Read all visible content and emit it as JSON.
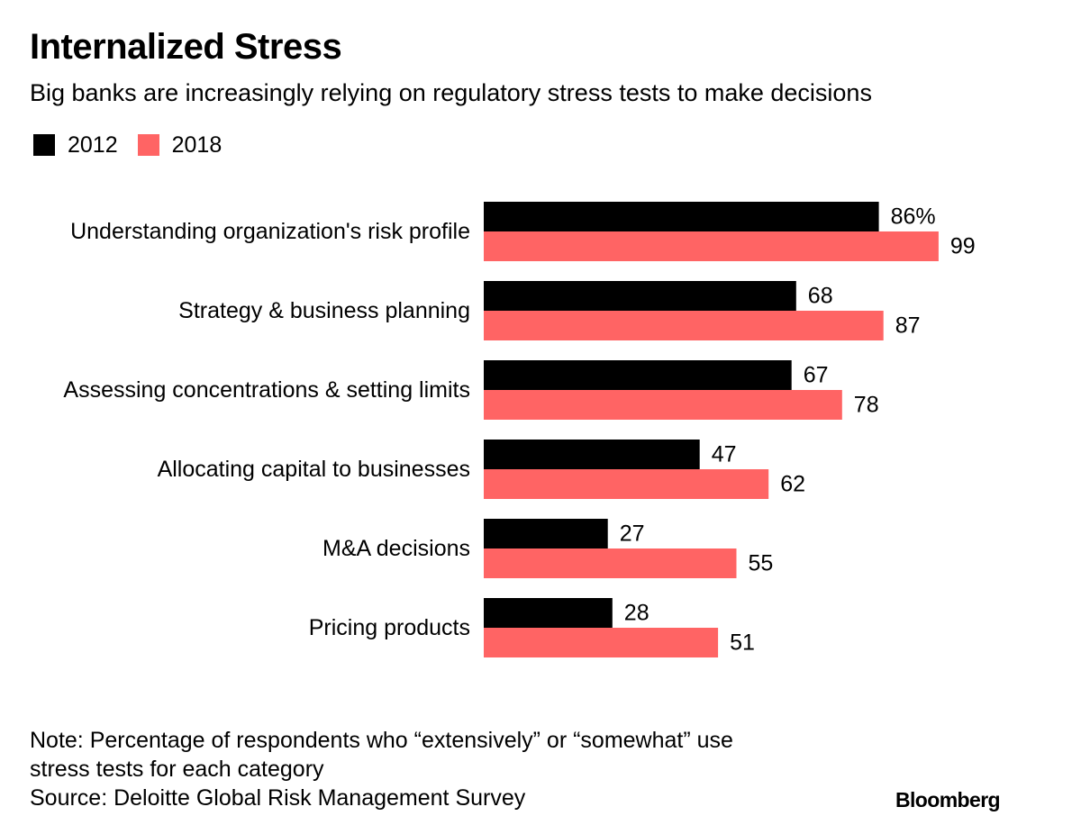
{
  "title": "Internalized Stress",
  "subtitle": "Big banks are increasingly relying on regulatory stress tests to make decisions",
  "legend": {
    "items": [
      {
        "label": "2012",
        "color": "#000000"
      },
      {
        "label": "2018",
        "color": "#ff6464"
      }
    ]
  },
  "chart_data": {
    "type": "bar",
    "orientation": "horizontal",
    "categories": [
      "Understanding organization's risk profile",
      "Strategy & business planning",
      "Assessing concentrations & setting limits",
      "Allocating capital to businesses",
      "M&A decisions",
      "Pricing products"
    ],
    "series": [
      {
        "name": "2012",
        "color": "#000000",
        "values": [
          86,
          68,
          67,
          47,
          27,
          28
        ],
        "labels": [
          "86%",
          "68",
          "67",
          "47",
          "27",
          "28"
        ]
      },
      {
        "name": "2018",
        "color": "#ff6464",
        "values": [
          99,
          87,
          78,
          62,
          55,
          51
        ],
        "labels": [
          "99",
          "87",
          "78",
          "62",
          "55",
          "51"
        ]
      }
    ],
    "xlim": [
      0,
      100
    ],
    "grid": false,
    "legend_position": "top-left"
  },
  "footer": {
    "note_line1": "Note: Percentage of respondents who “extensively” or “somewhat” use",
    "note_line2": "stress tests for each category",
    "source": "Source: Deloitte Global Risk Management Survey",
    "brand": "Bloomberg"
  }
}
